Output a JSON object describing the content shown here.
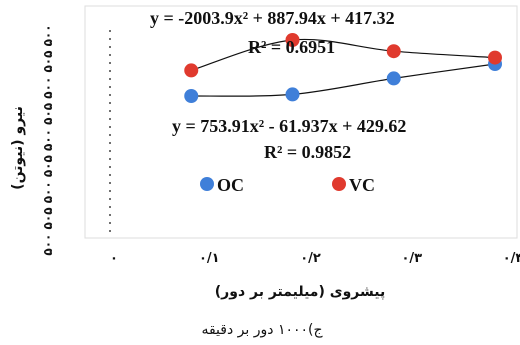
{
  "chart_data": {
    "type": "scatter",
    "x_ticks": [
      "۰",
      "۰/۱",
      "۰/۲",
      "۰/۳",
      "۰/۴"
    ],
    "y_ticks": [
      "۵۰۰",
      "۵۰۵",
      "۵۰۰",
      "۵۰۵",
      "۵۰۰",
      "۵۰۵",
      "۵۰۰",
      "۵۰۵",
      "۵۰۰"
    ],
    "xlabel": "پیشروی (میلیمتر بر دور)",
    "ylabel": "نیرو (نیوتن)",
    "caption": "ج)۱۰۰۰ دور بر دقیقه",
    "xlim": [
      0,
      0.4
    ],
    "ylim": [
      380,
      500
    ],
    "grid": false,
    "series": [
      {
        "name": "OC",
        "color": "#3f7fd9",
        "x": [
          0.1,
          0.2,
          0.3,
          0.4
        ],
        "y": [
          425,
          426,
          436,
          445
        ],
        "equation": "y = 753.91x² - 61.937x + 429.62",
        "r2": "R² = 0.9852"
      },
      {
        "name": "VC",
        "color": "#e03a2e",
        "x": [
          0.1,
          0.2,
          0.3,
          0.4
        ],
        "y": [
          441,
          460,
          453,
          449
        ],
        "equation": "y = -2003.9x² + 887.94x + 417.32",
        "r2": "R² = 0.6951"
      }
    ],
    "legend_position": "bottom-left"
  }
}
